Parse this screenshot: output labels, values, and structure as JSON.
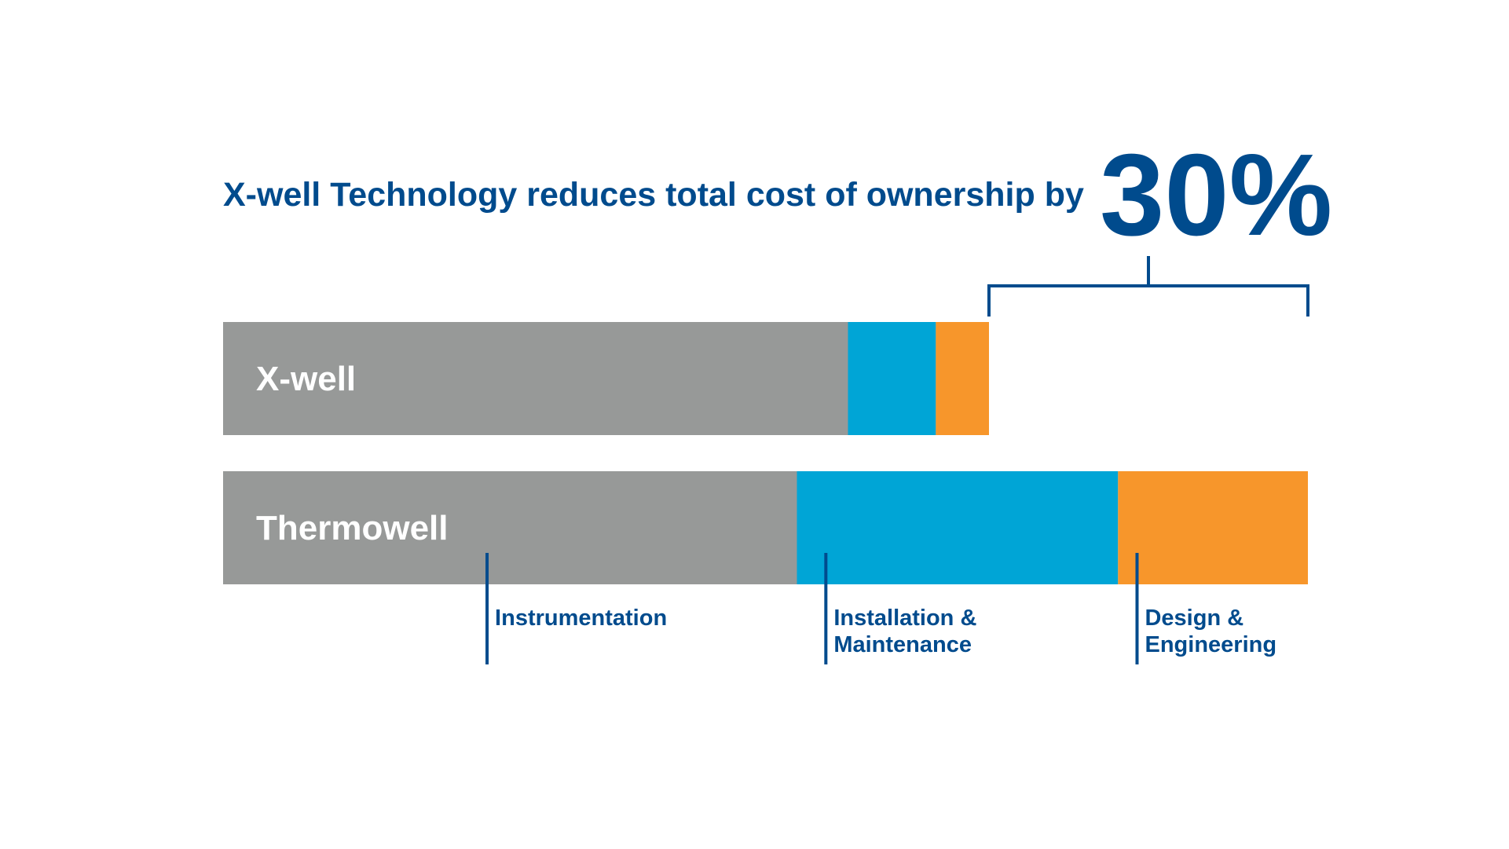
{
  "headline": {
    "text": "X-well Technology reduces total cost of ownership by",
    "highlight": "30%"
  },
  "colors": {
    "text_blue": "#004B8D",
    "gray": "#979998",
    "cyan": "#00A5D6",
    "orange": "#F7962B",
    "white": "#FFFFFF"
  },
  "chart_data": {
    "type": "bar",
    "orientation": "horizontal",
    "stacked": true,
    "title": "X-well Technology reduces total cost of ownership by 30%",
    "categories": [
      "X-well",
      "Thermowell"
    ],
    "series": [
      {
        "name": "Instrumentation",
        "color": "#979998",
        "values": [
          57.6,
          52.9
        ]
      },
      {
        "name": "Installation & Maintenance",
        "color": "#00A5D6",
        "values": [
          8.1,
          29.6
        ]
      },
      {
        "name": "Design & Engineering",
        "color": "#F7962B",
        "values": [
          4.9,
          17.5
        ]
      }
    ],
    "totals": [
      70.6,
      100
    ],
    "reduction_label": "30%",
    "xlim": [
      0,
      100
    ],
    "axes_visible": false,
    "grid": false,
    "legend": "callouts below bars",
    "category_callouts": [
      {
        "lines": [
          "Instrumentation"
        ]
      },
      {
        "lines": [
          "Installation &",
          "Maintenance"
        ]
      },
      {
        "lines": [
          "Design &",
          "Engineering"
        ]
      }
    ]
  }
}
